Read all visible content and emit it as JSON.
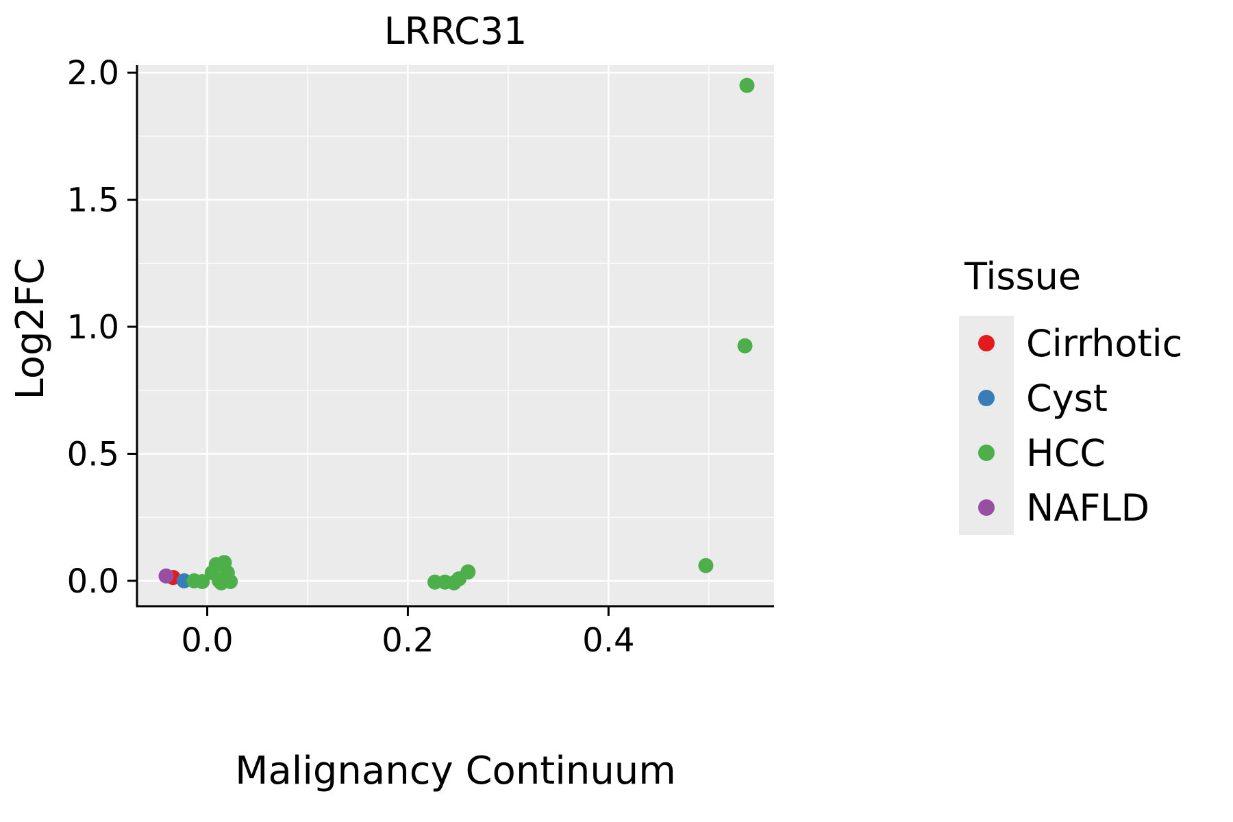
{
  "chart_data": {
    "type": "scatter",
    "title": "LRRC31",
    "xlabel": "Malignancy Continuum",
    "ylabel": "Log2FC",
    "legend_title": "Tissue",
    "legend_position": "right",
    "grid": true,
    "panel_color": "#ebebeb",
    "grid_color": "#ffffff",
    "axis_color": "#000000",
    "marker_radius": 11,
    "xlim": [
      -0.07,
      0.565
    ],
    "ylim": [
      -0.1,
      2.03
    ],
    "xticks": [
      0.0,
      0.2,
      0.4
    ],
    "xtick_labels": [
      "0.0",
      "0.2",
      "0.4"
    ],
    "yticks": [
      0.0,
      0.5,
      1.0,
      1.5,
      2.0
    ],
    "ytick_labels": [
      "0.0",
      "0.5",
      "1.0",
      "1.5",
      "2.0"
    ],
    "series": [
      {
        "name": "Cirrhotic",
        "color": "#e41a1c",
        "points": [
          [
            -0.034,
            0.013
          ]
        ]
      },
      {
        "name": "Cyst",
        "color": "#377eb8",
        "points": [
          [
            -0.023,
            0.0
          ]
        ]
      },
      {
        "name": "HCC",
        "color": "#4daf4a",
        "points": [
          [
            -0.013,
            0.0
          ],
          [
            -0.005,
            -0.003
          ],
          [
            0.005,
            0.032
          ],
          [
            0.009,
            0.064
          ],
          [
            0.012,
            0.0
          ],
          [
            0.014,
            -0.008
          ],
          [
            0.017,
            0.072
          ],
          [
            0.02,
            0.032
          ],
          [
            0.023,
            -0.003
          ],
          [
            0.227,
            -0.005
          ],
          [
            0.237,
            -0.005
          ],
          [
            0.246,
            -0.008
          ],
          [
            0.251,
            0.008
          ],
          [
            0.26,
            0.035
          ],
          [
            0.497,
            0.06
          ],
          [
            0.536,
            0.925
          ],
          [
            0.538,
            1.95
          ]
        ]
      },
      {
        "name": "NAFLD",
        "color": "#984ea3",
        "points": [
          [
            -0.041,
            0.019
          ]
        ]
      }
    ]
  }
}
